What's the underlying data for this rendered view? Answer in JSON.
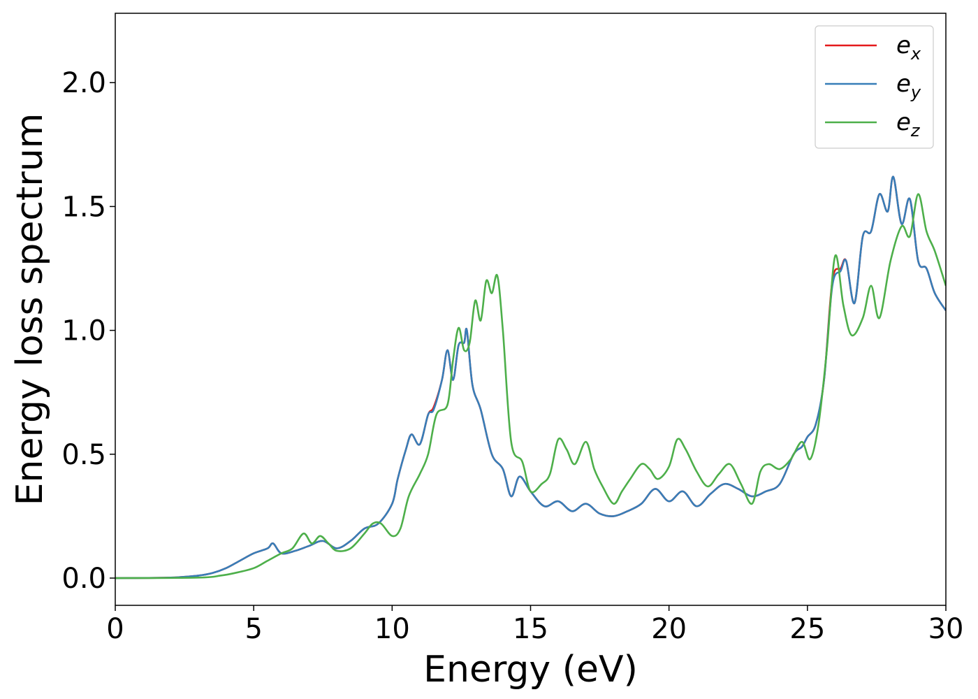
{
  "chart_data": {
    "type": "line",
    "xlabel": "Energy (eV)",
    "ylabel": "Energy loss spectrum",
    "xlim": [
      0,
      30
    ],
    "ylim": [
      -0.11,
      2.28
    ],
    "xticks": [
      0,
      5,
      10,
      15,
      20,
      25,
      30
    ],
    "xtick_labels": [
      "0",
      "5",
      "10",
      "15",
      "20",
      "25",
      "30"
    ],
    "yticks": [
      0.0,
      0.5,
      1.0,
      1.5,
      2.0
    ],
    "ytick_labels": [
      "0.0",
      "0.5",
      "1.0",
      "1.5",
      "2.0"
    ],
    "grid": false,
    "legend_position": "top-right",
    "colors": {
      "e_x": "#e41a1c",
      "e_y": "#377eb8",
      "e_z": "#4daf4a",
      "axis": "#000000"
    },
    "series": [
      {
        "key": "e_x",
        "legend_main": "e",
        "legend_sub": "x",
        "x": [
          0,
          2,
          3,
          3.5,
          4,
          4.5,
          5,
          5.5,
          5.7,
          6,
          6.5,
          7,
          7.5,
          8,
          8.5,
          9,
          9.5,
          10,
          10.2,
          10.5,
          10.7,
          11,
          11.3,
          11.5,
          11.8,
          12,
          12.2,
          12.4,
          12.6,
          12.7,
          12.9,
          13.2,
          13.6,
          14,
          14.3,
          14.6,
          15,
          15.5,
          16,
          16.5,
          17,
          17.5,
          18,
          18.5,
          19,
          19.5,
          20,
          20.5,
          21,
          21.5,
          22,
          22.5,
          23,
          23.5,
          24,
          24.5,
          24.8,
          25,
          25.3,
          25.6,
          25.9,
          26.2,
          26.4,
          26.7,
          27,
          27.3,
          27.6,
          27.9,
          28.1,
          28.4,
          28.7,
          29,
          29.3,
          29.6,
          30
        ],
        "y": [
          0,
          0.002,
          0.01,
          0.02,
          0.04,
          0.07,
          0.1,
          0.12,
          0.14,
          0.1,
          0.11,
          0.13,
          0.15,
          0.12,
          0.15,
          0.2,
          0.22,
          0.3,
          0.4,
          0.52,
          0.58,
          0.54,
          0.66,
          0.69,
          0.8,
          0.92,
          0.8,
          0.94,
          0.95,
          1.0,
          0.78,
          0.68,
          0.5,
          0.44,
          0.33,
          0.41,
          0.35,
          0.29,
          0.31,
          0.27,
          0.3,
          0.26,
          0.25,
          0.27,
          0.3,
          0.36,
          0.31,
          0.35,
          0.29,
          0.34,
          0.38,
          0.36,
          0.33,
          0.35,
          0.38,
          0.5,
          0.53,
          0.57,
          0.62,
          0.8,
          1.2,
          1.25,
          1.28,
          1.11,
          1.38,
          1.4,
          1.55,
          1.48,
          1.62,
          1.43,
          1.53,
          1.28,
          1.25,
          1.15,
          1.08
        ]
      },
      {
        "key": "e_y",
        "legend_main": "e",
        "legend_sub": "y",
        "x": [
          0,
          2,
          3,
          3.5,
          4,
          4.5,
          5,
          5.5,
          5.7,
          6,
          6.5,
          7,
          7.5,
          8,
          8.5,
          9,
          9.5,
          10,
          10.2,
          10.5,
          10.7,
          11,
          11.3,
          11.5,
          11.8,
          12,
          12.2,
          12.4,
          12.6,
          12.7,
          12.9,
          13.2,
          13.6,
          14,
          14.3,
          14.6,
          15,
          15.5,
          16,
          16.5,
          17,
          17.5,
          18,
          18.5,
          19,
          19.5,
          20,
          20.5,
          21,
          21.5,
          22,
          22.5,
          23,
          23.5,
          24,
          24.5,
          24.8,
          25,
          25.3,
          25.6,
          25.9,
          26.2,
          26.4,
          26.7,
          27,
          27.3,
          27.6,
          27.9,
          28.1,
          28.4,
          28.7,
          29,
          29.3,
          29.6,
          30
        ],
        "y": [
          0,
          0.002,
          0.01,
          0.02,
          0.04,
          0.07,
          0.1,
          0.12,
          0.14,
          0.1,
          0.11,
          0.13,
          0.15,
          0.12,
          0.15,
          0.2,
          0.22,
          0.3,
          0.4,
          0.52,
          0.58,
          0.54,
          0.66,
          0.68,
          0.8,
          0.92,
          0.8,
          0.94,
          0.95,
          1.0,
          0.78,
          0.68,
          0.5,
          0.44,
          0.33,
          0.41,
          0.35,
          0.29,
          0.31,
          0.27,
          0.3,
          0.26,
          0.25,
          0.27,
          0.3,
          0.36,
          0.31,
          0.35,
          0.29,
          0.34,
          0.38,
          0.36,
          0.33,
          0.35,
          0.38,
          0.5,
          0.53,
          0.57,
          0.62,
          0.8,
          1.18,
          1.24,
          1.28,
          1.11,
          1.38,
          1.4,
          1.55,
          1.48,
          1.62,
          1.43,
          1.53,
          1.28,
          1.25,
          1.15,
          1.08
        ]
      },
      {
        "key": "e_z",
        "legend_main": "e",
        "legend_sub": "z",
        "x": [
          0,
          3,
          3.8,
          4.3,
          5,
          5.5,
          6,
          6.4,
          6.8,
          7.1,
          7.4,
          7.7,
          8,
          8.5,
          9,
          9.3,
          9.6,
          10,
          10.3,
          10.6,
          11,
          11.3,
          11.6,
          12,
          12.2,
          12.4,
          12.6,
          12.8,
          13,
          13.2,
          13.4,
          13.6,
          13.8,
          14,
          14.3,
          14.7,
          15,
          15.4,
          15.7,
          16,
          16.3,
          16.6,
          17,
          17.3,
          17.6,
          18,
          18.3,
          18.6,
          19,
          19.3,
          19.6,
          20,
          20.3,
          20.6,
          21,
          21.4,
          21.8,
          22.2,
          22.6,
          23,
          23.3,
          23.6,
          24,
          24.4,
          24.8,
          25.1,
          25.4,
          25.7,
          26,
          26.3,
          26.6,
          27,
          27.3,
          27.6,
          28,
          28.4,
          28.7,
          29,
          29.3,
          29.6,
          30
        ],
        "y": [
          0,
          0.002,
          0.01,
          0.02,
          0.04,
          0.07,
          0.1,
          0.12,
          0.18,
          0.14,
          0.17,
          0.14,
          0.11,
          0.12,
          0.18,
          0.22,
          0.22,
          0.17,
          0.2,
          0.33,
          0.42,
          0.5,
          0.66,
          0.7,
          0.88,
          1.01,
          0.92,
          0.95,
          1.12,
          1.04,
          1.2,
          1.15,
          1.22,
          1.0,
          0.55,
          0.47,
          0.35,
          0.38,
          0.42,
          0.56,
          0.52,
          0.46,
          0.55,
          0.44,
          0.37,
          0.3,
          0.35,
          0.4,
          0.46,
          0.44,
          0.4,
          0.45,
          0.56,
          0.52,
          0.43,
          0.37,
          0.42,
          0.46,
          0.38,
          0.3,
          0.43,
          0.46,
          0.44,
          0.48,
          0.55,
          0.48,
          0.62,
          0.92,
          1.3,
          1.1,
          0.98,
          1.05,
          1.18,
          1.05,
          1.28,
          1.42,
          1.38,
          1.55,
          1.4,
          1.32,
          1.18
        ]
      }
    ]
  }
}
